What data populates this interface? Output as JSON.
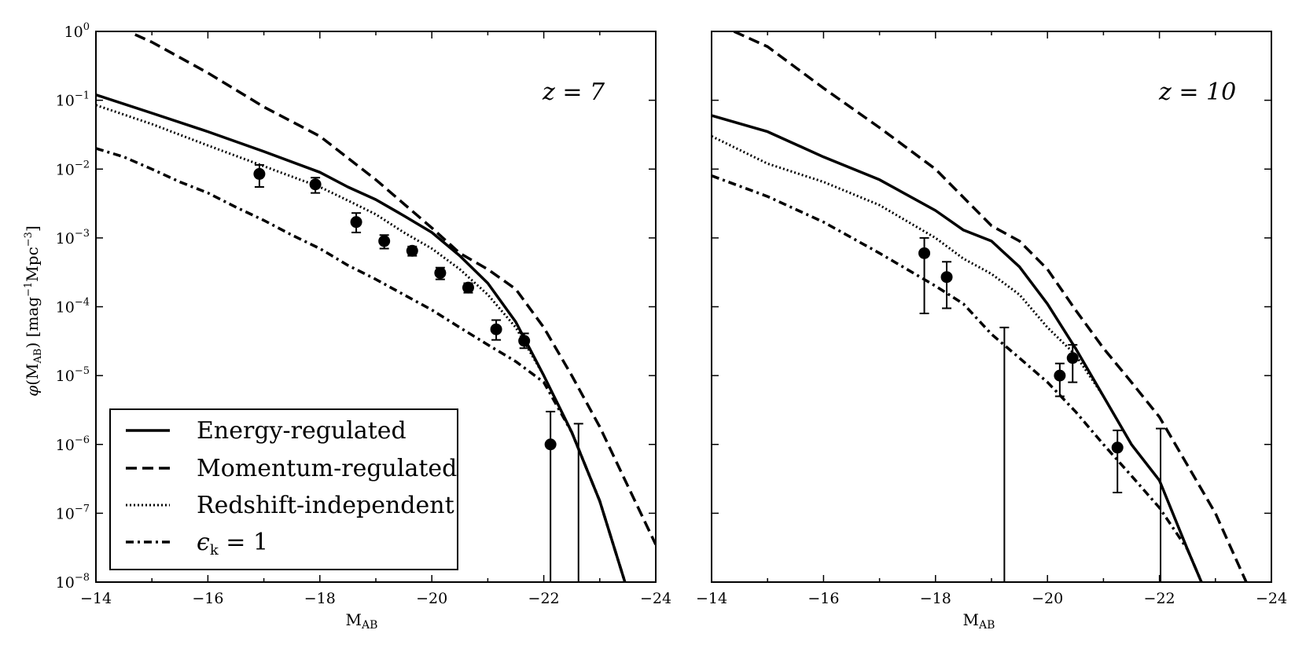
{
  "chart_data": [
    {
      "type": "line",
      "panel_label": "z = 7",
      "xlabel": "M_AB",
      "ylabel": "φ(M_AB) [mag⁻¹Mpc⁻³]",
      "xlim": [
        -14,
        -24
      ],
      "ylim": [
        1e-08,
        1
      ],
      "yscale": "log",
      "xticks": [
        -14,
        -16,
        -18,
        -20,
        -22,
        -24
      ],
      "xtick_labels": [
        "−14",
        "−16",
        "−18",
        "−20",
        "−22",
        "−24"
      ],
      "yticks_exp": [
        0,
        -1,
        -2,
        -3,
        -4,
        -5,
        -6,
        -7,
        -8
      ],
      "ytick_labels": [
        "10^0",
        "10^-1",
        "10^-2",
        "10^-3",
        "10^-4",
        "10^-5",
        "10^-6",
        "10^-7",
        "10^-8"
      ],
      "legend_position": "lower-left",
      "series": [
        {
          "name": "Energy-regulated",
          "style": "solid",
          "x": [
            -14,
            -15,
            -16,
            -17,
            -18,
            -18.5,
            -19,
            -19.5,
            -20,
            -20.5,
            -21,
            -21.5,
            -22,
            -22.5,
            -23,
            -23.45
          ],
          "y": [
            0.12,
            0.065,
            0.035,
            0.018,
            0.009,
            0.0055,
            0.0036,
            0.0021,
            0.0012,
            0.00055,
            0.00022,
            6e-05,
            1e-05,
            1.5e-06,
            1.5e-07,
            1e-08
          ]
        },
        {
          "name": "Momentum-regulated",
          "style": "dashed",
          "x": [
            -14.7,
            -15,
            -16,
            -17,
            -18,
            -19,
            -20,
            -20.5,
            -21,
            -21.5,
            -22,
            -22.5,
            -23,
            -23.5,
            -24
          ],
          "y": [
            0.9,
            0.7,
            0.25,
            0.08,
            0.03,
            0.007,
            0.0014,
            0.0006,
            0.00035,
            0.00018,
            5e-05,
            1e-05,
            1.8e-06,
            2.5e-07,
            3.5e-08
          ]
        },
        {
          "name": "Redshift-independent",
          "style": "dotted",
          "x": [
            -14,
            -15,
            -16,
            -17,
            -18,
            -18.5,
            -19,
            -19.5,
            -20,
            -20.5,
            -21,
            -21.5,
            -22,
            -22.5,
            -23,
            -23.45
          ],
          "y": [
            0.085,
            0.045,
            0.022,
            0.011,
            0.0055,
            0.0035,
            0.0022,
            0.0012,
            0.0007,
            0.00035,
            0.00015,
            5e-05,
            1e-05,
            1.5e-06,
            1.5e-07,
            1e-08
          ]
        },
        {
          "name": "ε_k = 1",
          "style": "dashdot",
          "x": [
            -14,
            -14.5,
            -15,
            -15.5,
            -16,
            -16.5,
            -17,
            -17.5,
            -18,
            -18.5,
            -19,
            -19.5,
            -20,
            -20.5,
            -21,
            -21.5,
            -22,
            -22.5,
            -23,
            -23.45
          ],
          "y": [
            0.02,
            0.015,
            0.01,
            0.0065,
            0.0045,
            0.0028,
            0.0018,
            0.0011,
            0.0007,
            0.0004,
            0.00025,
            0.00015,
            9e-05,
            5e-05,
            2.8e-05,
            1.6e-05,
            8e-06,
            1.5e-06,
            1.5e-07,
            1e-08
          ]
        }
      ],
      "points": [
        {
          "x": -16.92,
          "y": 0.0085,
          "lo": 0.0055,
          "hi": 0.0115
        },
        {
          "x": -17.92,
          "y": 0.006,
          "lo": 0.0045,
          "hi": 0.0075
        },
        {
          "x": -18.65,
          "y": 0.0017,
          "lo": 0.0012,
          "hi": 0.0023
        },
        {
          "x": -19.15,
          "y": 0.0009,
          "lo": 0.0007,
          "hi": 0.0011
        },
        {
          "x": -19.65,
          "y": 0.00065,
          "lo": 0.00055,
          "hi": 0.00075
        },
        {
          "x": -20.15,
          "y": 0.00031,
          "lo": 0.00025,
          "hi": 0.00037
        },
        {
          "x": -20.65,
          "y": 0.00019,
          "lo": 0.00016,
          "hi": 0.00022
        },
        {
          "x": -21.15,
          "y": 4.7e-05,
          "lo": 3.3e-05,
          "hi": 6.4e-05
        },
        {
          "x": -21.65,
          "y": 3.2e-05,
          "lo": 2.5e-05,
          "hi": 4.1e-05
        },
        {
          "x": -22.12,
          "y": 1e-06,
          "lo": 1e-08,
          "hi": 3e-06
        },
        {
          "x": -22.62,
          "y": null,
          "lo": 1e-08,
          "hi": 2e-06
        }
      ]
    },
    {
      "type": "line",
      "panel_label": "z = 10",
      "xlabel": "M_AB",
      "ylabel": "",
      "xlim": [
        -14,
        -24
      ],
      "ylim": [
        1e-08,
        1
      ],
      "yscale": "log",
      "xticks": [
        -14,
        -16,
        -18,
        -20,
        -22,
        -24
      ],
      "xtick_labels": [
        "−14",
        "−16",
        "−18",
        "−20",
        "−22",
        "−24"
      ],
      "series": [
        {
          "name": "Energy-regulated",
          "style": "solid",
          "x": [
            -14,
            -15,
            -16,
            -17,
            -18,
            -18.5,
            -19,
            -19.5,
            -20,
            -20.5,
            -21,
            -21.5,
            -22,
            -22.5,
            -22.75
          ],
          "y": [
            0.06,
            0.035,
            0.015,
            0.007,
            0.0025,
            0.0013,
            0.0009,
            0.00038,
            0.00011,
            2.5e-05,
            5e-06,
            1e-06,
            3e-07,
            3e-08,
            1e-08
          ]
        },
        {
          "name": "Momentum-regulated",
          "style": "dashed",
          "x": [
            -14.4,
            -15,
            -16,
            -17,
            -18,
            -19,
            -19.5,
            -20,
            -20.5,
            -21,
            -21.5,
            -22,
            -22.5,
            -23,
            -23.55
          ],
          "y": [
            1,
            0.6,
            0.15,
            0.04,
            0.01,
            0.0015,
            0.0009,
            0.00035,
            9e-05,
            2.5e-05,
            8e-06,
            2.5e-06,
            5e-07,
            1e-07,
            1e-08
          ]
        },
        {
          "name": "Redshift-independent",
          "style": "dotted",
          "x": [
            -14,
            -15,
            -16,
            -17,
            -18,
            -18.5,
            -19,
            -19.5,
            -20,
            -20.5,
            -21,
            -21.5,
            -22,
            -22.5,
            -22.75
          ],
          "y": [
            0.03,
            0.012,
            0.0065,
            0.003,
            0.001,
            0.0005,
            0.0003,
            0.00015,
            5e-05,
            2e-05,
            5e-06,
            1e-06,
            3e-07,
            3e-08,
            1e-08
          ]
        },
        {
          "name": "ε_k = 1",
          "style": "dashdot",
          "x": [
            -14,
            -15,
            -16,
            -17,
            -18,
            -18.5,
            -19,
            -19.5,
            -20,
            -20.5,
            -21,
            -21.5,
            -22,
            -22.5,
            -22.75
          ],
          "y": [
            0.008,
            0.004,
            0.0017,
            0.0006,
            0.0002,
            0.00011,
            4e-05,
            1.8e-05,
            8e-06,
            3e-06,
            1e-06,
            3.5e-07,
            1.2e-07,
            3e-08,
            1e-08
          ]
        }
      ],
      "points": [
        {
          "x": -17.8,
          "y": 0.0006,
          "lo": 8e-05,
          "hi": 0.001
        },
        {
          "x": -18.2,
          "y": 0.00027,
          "lo": 9.5e-05,
          "hi": 0.00045
        },
        {
          "x": -19.23,
          "y": null,
          "lo": 1e-08,
          "hi": 5e-05
        },
        {
          "x": -20.22,
          "y": 1e-05,
          "lo": 5e-06,
          "hi": 1.5e-05
        },
        {
          "x": -20.45,
          "y": 1.8e-05,
          "lo": 8e-06,
          "hi": 2.8e-05
        },
        {
          "x": -21.25,
          "y": 9e-07,
          "lo": 2e-07,
          "hi": 1.6e-06
        },
        {
          "x": -22.02,
          "y": null,
          "lo": 1e-08,
          "hi": 1.7e-06
        }
      ]
    }
  ],
  "legend": [
    {
      "name": "Energy-regulated",
      "style": "solid"
    },
    {
      "name": "Momentum-regulated",
      "style": "dashed"
    },
    {
      "name": "Redshift-independent",
      "style": "dotted"
    },
    {
      "name": "ε_k = 1",
      "style": "dashdot"
    }
  ]
}
